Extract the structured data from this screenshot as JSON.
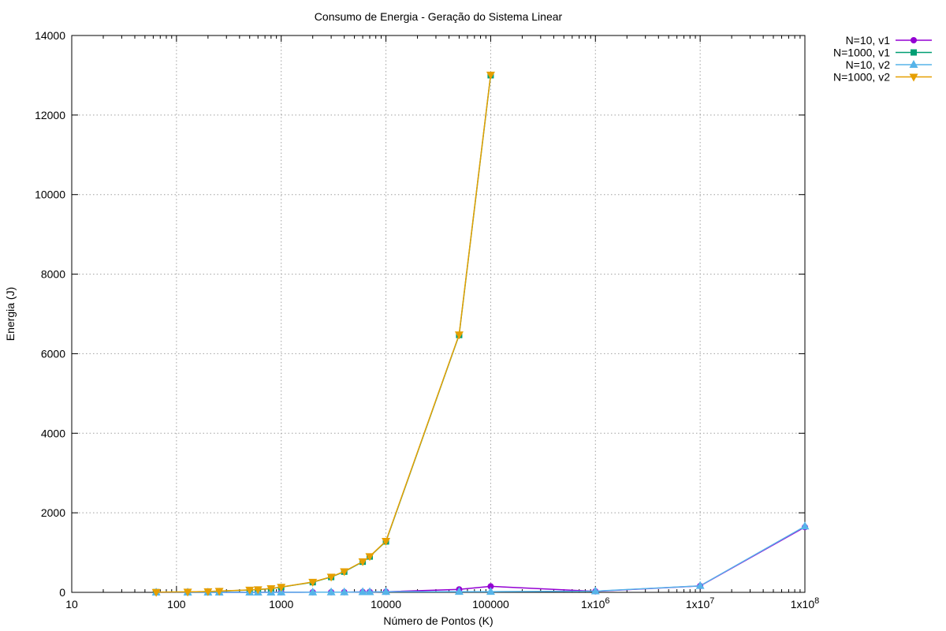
{
  "chart_data": {
    "type": "line",
    "title": "Consumo de Energia - Geração do Sistema Linear",
    "xlabel": "Número de Pontos (K)",
    "ylabel": "Energia (J)",
    "x_scale": "log",
    "xlim": [
      10,
      100000000
    ],
    "ylim": [
      0,
      14000
    ],
    "grid": true,
    "legend_position": "outside-top-right",
    "x_ticks": [
      {
        "value": 10,
        "base": "10",
        "exp": ""
      },
      {
        "value": 100,
        "base": "100",
        "exp": ""
      },
      {
        "value": 1000,
        "base": "1000",
        "exp": ""
      },
      {
        "value": 10000,
        "base": "10000",
        "exp": ""
      },
      {
        "value": 100000,
        "base": "100000",
        "exp": ""
      },
      {
        "value": 1000000,
        "base": "1x10",
        "exp": "6"
      },
      {
        "value": 10000000,
        "base": "1x10",
        "exp": "7"
      },
      {
        "value": 100000000,
        "base": "1x10",
        "exp": "8"
      }
    ],
    "y_ticks": [
      0,
      2000,
      4000,
      6000,
      8000,
      10000,
      12000,
      14000
    ],
    "series": [
      {
        "name": "N=10, v1",
        "color": "#9400d3",
        "marker": "circle",
        "x": [
          64,
          128,
          200,
          256,
          500,
          600,
          800,
          1000,
          2000,
          3000,
          4000,
          6000,
          7000,
          10000,
          50000,
          100000,
          1000000,
          10000000,
          100000000
        ],
        "y": [
          0.1,
          0.2,
          0.3,
          0.4,
          0.8,
          0.9,
          1.2,
          1.5,
          3,
          4.5,
          6,
          9,
          10.5,
          15,
          75,
          150,
          25,
          160,
          1640
        ]
      },
      {
        "name": "N=1000, v1",
        "color": "#009e73",
        "marker": "square",
        "x": [
          64,
          128,
          200,
          256,
          500,
          600,
          800,
          1000,
          2000,
          3000,
          4000,
          6000,
          7000,
          10000,
          50000,
          100000
        ],
        "y": [
          5,
          10,
          20,
          30,
          60,
          70,
          95,
          130,
          255,
          385,
          520,
          770,
          900,
          1280,
          6470,
          13000
        ]
      },
      {
        "name": "N=10, v2",
        "color": "#56b4e9",
        "marker": "triangle-up",
        "x": [
          64,
          128,
          200,
          256,
          500,
          600,
          800,
          1000,
          2000,
          3000,
          4000,
          6000,
          7000,
          10000,
          50000,
          100000,
          1000000,
          10000000,
          100000000
        ],
        "y": [
          0.1,
          0.2,
          0.3,
          0.4,
          0.8,
          0.9,
          1.2,
          1.5,
          3,
          4.5,
          6,
          9,
          10.5,
          15,
          17,
          18,
          30,
          165,
          1660
        ]
      },
      {
        "name": "N=1000, v2",
        "color": "#e69f00",
        "marker": "triangle-down",
        "x": [
          64,
          128,
          200,
          256,
          500,
          600,
          800,
          1000,
          2000,
          3000,
          4000,
          6000,
          7000,
          10000,
          50000,
          100000
        ],
        "y": [
          5,
          12,
          22,
          32,
          62,
          72,
          98,
          133,
          260,
          390,
          525,
          775,
          905,
          1290,
          6480,
          13010
        ]
      }
    ]
  }
}
